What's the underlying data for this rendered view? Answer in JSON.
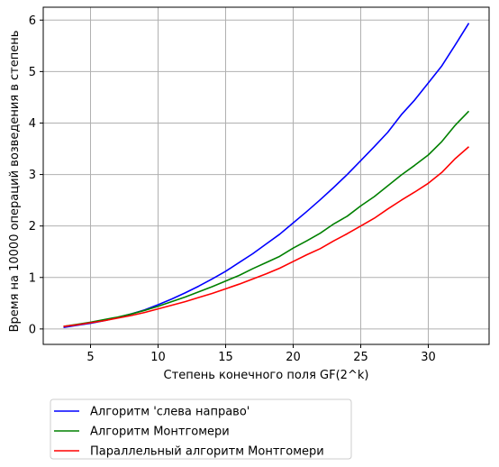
{
  "chart_data": {
    "type": "line",
    "xlabel": "Степень конечного поля GF(2^k)",
    "ylabel": "Время на 10000 операций возведения в степень",
    "xlim": [
      1.5,
      34.5
    ],
    "ylim": [
      -0.3,
      6.25
    ],
    "xticks": [
      5,
      10,
      15,
      20,
      25,
      30
    ],
    "yticks": [
      0,
      1,
      2,
      3,
      4,
      5,
      6
    ],
    "grid": true,
    "legend_position": "below-left",
    "series": [
      {
        "name": "Алгоритм 'слева направо'",
        "color": "#0000ff",
        "x": [
          3,
          4,
          5,
          6,
          7,
          8,
          9,
          10,
          11,
          12,
          13,
          14,
          15,
          16,
          17,
          18,
          19,
          20,
          21,
          22,
          23,
          24,
          25,
          26,
          27,
          28,
          29,
          30,
          31,
          32,
          33
        ],
        "y": [
          0.03,
          0.07,
          0.11,
          0.16,
          0.22,
          0.29,
          0.37,
          0.47,
          0.58,
          0.7,
          0.83,
          0.97,
          1.12,
          1.29,
          1.46,
          1.65,
          1.84,
          2.06,
          2.28,
          2.51,
          2.75,
          3.0,
          3.27,
          3.54,
          3.82,
          4.16,
          4.45,
          4.78,
          5.11,
          5.52,
          5.94
        ]
      },
      {
        "name": "Алгоритм Монтгомери",
        "color": "#008000",
        "x": [
          3,
          4,
          5,
          6,
          7,
          8,
          9,
          10,
          11,
          12,
          13,
          14,
          15,
          16,
          17,
          18,
          19,
          20,
          21,
          22,
          23,
          24,
          25,
          26,
          27,
          28,
          29,
          30,
          31,
          32,
          33
        ],
        "y": [
          0.05,
          0.09,
          0.13,
          0.18,
          0.23,
          0.29,
          0.36,
          0.44,
          0.53,
          0.62,
          0.72,
          0.82,
          0.93,
          1.04,
          1.17,
          1.29,
          1.41,
          1.57,
          1.71,
          1.86,
          2.04,
          2.19,
          2.39,
          2.57,
          2.78,
          2.99,
          3.18,
          3.38,
          3.64,
          3.96,
          4.23
        ]
      },
      {
        "name": "Параллельный алгоритм Монтгомери",
        "color": "#ff0000",
        "x": [
          3,
          4,
          5,
          6,
          7,
          8,
          9,
          10,
          11,
          12,
          13,
          14,
          15,
          16,
          17,
          18,
          19,
          20,
          21,
          22,
          23,
          24,
          25,
          26,
          27,
          28,
          29,
          30,
          31,
          32,
          33
        ],
        "y": [
          0.05,
          0.08,
          0.12,
          0.16,
          0.21,
          0.26,
          0.32,
          0.39,
          0.46,
          0.53,
          0.61,
          0.69,
          0.78,
          0.87,
          0.97,
          1.07,
          1.18,
          1.31,
          1.44,
          1.56,
          1.71,
          1.85,
          2.0,
          2.15,
          2.33,
          2.5,
          2.66,
          2.83,
          3.04,
          3.31,
          3.54
        ]
      }
    ]
  }
}
